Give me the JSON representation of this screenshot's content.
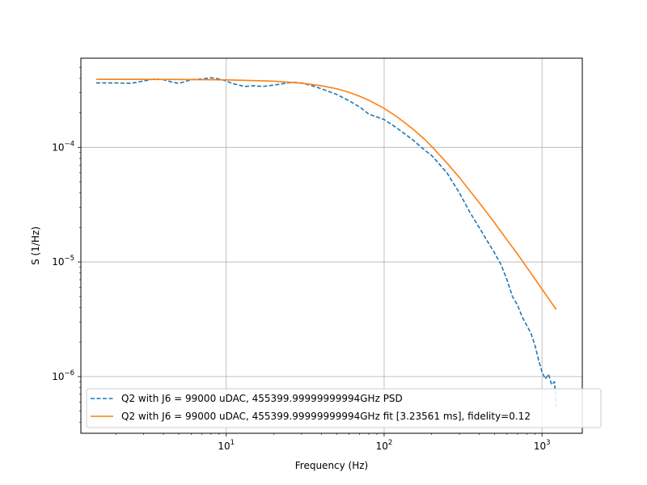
{
  "chart_data": {
    "type": "line",
    "xlabel": "Frequency (Hz)",
    "ylabel": "S (1/Hz)",
    "xscale": "log",
    "yscale": "log",
    "xlim": [
      1.2,
      1800
    ],
    "ylim": [
      3.2e-07,
      0.0006
    ],
    "grid": true,
    "legend_position": "lower-left",
    "x_ticks": [
      {
        "value": 10,
        "base": "10",
        "exp": "1"
      },
      {
        "value": 100,
        "base": "10",
        "exp": "2"
      },
      {
        "value": 1000,
        "base": "10",
        "exp": "3"
      }
    ],
    "y_ticks": [
      {
        "value": 1e-06,
        "base": "10",
        "exp": "−6"
      },
      {
        "value": 1e-05,
        "base": "10",
        "exp": "−5"
      },
      {
        "value": 0.0001,
        "base": "10",
        "exp": "−4"
      }
    ],
    "series": [
      {
        "name": "Q2 with J6 = 99000 uDAC, 455399.99999999994GHz PSD",
        "color": "#1f77b4",
        "style": "dashed",
        "x": [
          1.5,
          2.0,
          2.5,
          3.0,
          3.5,
          4.0,
          4.5,
          5.0,
          5.5,
          6.0,
          7.0,
          8.0,
          9.0,
          10,
          11,
          12,
          13,
          15,
          17,
          20,
          23,
          26,
          30,
          35,
          40,
          50,
          60,
          70,
          80,
          100,
          120,
          150,
          180,
          200,
          250,
          300,
          350,
          400,
          500,
          550,
          600,
          650,
          700,
          750,
          800,
          850,
          900,
          950,
          1000,
          1050,
          1100,
          1150,
          1200,
          1230
        ],
        "y": [
          0.000365,
          0.000365,
          0.000362,
          0.00038,
          0.000395,
          0.00039,
          0.000372,
          0.000362,
          0.000375,
          0.00039,
          0.000395,
          0.000405,
          0.000395,
          0.00038,
          0.00036,
          0.00035,
          0.00034,
          0.000345,
          0.00034,
          0.00035,
          0.00036,
          0.00037,
          0.000365,
          0.000345,
          0.000325,
          0.00029,
          0.000255,
          0.000225,
          0.000195,
          0.000175,
          0.000148,
          0.000118,
          9.5e-05,
          8.5e-05,
          6e-05,
          4e-05,
          2.7e-05,
          2e-05,
          1.2e-05,
          9.5e-06,
          7e-06,
          5e-06,
          4.2e-06,
          3.3e-06,
          2.8e-06,
          2.4e-06,
          1.9e-06,
          1.4e-06,
          1.1e-06,
          9.5e-07,
          1.05e-06,
          8.5e-07,
          9e-07,
          5.5e-07
        ]
      },
      {
        "name": "Q2 with J6 = 99000 uDAC, 455399.99999999994GHz fit [3.23561 ms], fidelity=0.12",
        "color": "#ff7f0e",
        "style": "solid",
        "x": [
          1.5,
          2,
          3,
          5,
          7,
          10,
          15,
          20,
          30,
          40,
          50,
          60,
          70,
          80,
          100,
          120,
          150,
          180,
          200,
          250,
          300,
          400,
          500,
          600,
          700,
          800,
          900,
          1000,
          1100,
          1230
        ],
        "y": [
          0.000392,
          0.000392,
          0.000392,
          0.000391,
          0.00039,
          0.000388,
          0.000383,
          0.000378,
          0.000363,
          0.000345,
          0.000325,
          0.000302,
          0.000279,
          0.000258,
          0.000219,
          0.000186,
          0.000147,
          0.000118,
          0.000102,
          7.3e-05,
          5.45e-05,
          3.3e-05,
          2.2e-05,
          1.56e-05,
          1.17e-05,
          9e-06,
          7.15e-06,
          5.8e-06,
          4.8e-06,
          3.85e-06
        ]
      }
    ]
  }
}
